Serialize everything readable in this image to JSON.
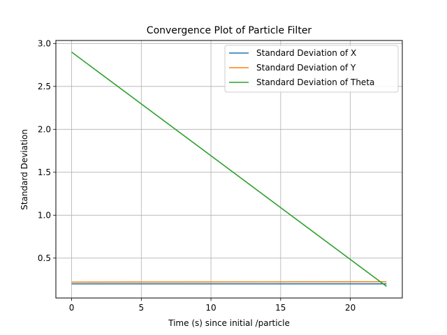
{
  "chart_data": {
    "type": "line",
    "title": "Convergence Plot of Particle Filter",
    "xlabel": "Time (s) since initial /particle",
    "ylabel": "Standard Deviation",
    "xlim": [
      -1.13,
      23.73
    ],
    "ylim": [
      0.035,
      3.035
    ],
    "xticks": [
      0,
      5,
      10,
      15,
      20
    ],
    "yticks": [
      0.5,
      1.0,
      1.5,
      2.0,
      2.5,
      3.0
    ],
    "xtick_labels": [
      "0",
      "5",
      "10",
      "15",
      "20"
    ],
    "ytick_labels": [
      "0.5",
      "1.0",
      "1.5",
      "2.0",
      "2.5",
      "3.0"
    ],
    "grid": true,
    "legend_position": "top-right",
    "series": [
      {
        "name": "Standard Deviation of X",
        "color": "#1f77b4",
        "x": [
          0,
          22.6
        ],
        "y": [
          0.2,
          0.2
        ]
      },
      {
        "name": "Standard Deviation of Y",
        "color": "#ff7f0e",
        "x": [
          0,
          22.6
        ],
        "y": [
          0.22,
          0.225
        ]
      },
      {
        "name": "Standard Deviation of Theta",
        "color": "#2ca02c",
        "x": [
          0,
          22.6
        ],
        "y": [
          2.9,
          0.17
        ]
      }
    ]
  }
}
